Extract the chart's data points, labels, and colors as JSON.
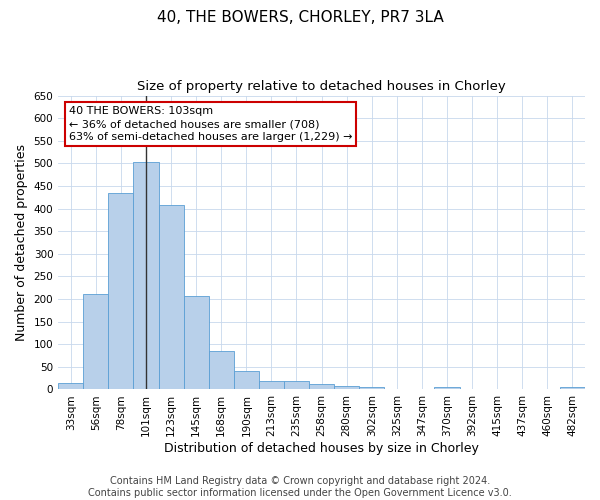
{
  "title": "40, THE BOWERS, CHORLEY, PR7 3LA",
  "subtitle": "Size of property relative to detached houses in Chorley",
  "xlabel": "Distribution of detached houses by size in Chorley",
  "ylabel": "Number of detached properties",
  "categories": [
    "33sqm",
    "56sqm",
    "78sqm",
    "101sqm",
    "123sqm",
    "145sqm",
    "168sqm",
    "190sqm",
    "213sqm",
    "235sqm",
    "258sqm",
    "280sqm",
    "302sqm",
    "325sqm",
    "347sqm",
    "370sqm",
    "392sqm",
    "415sqm",
    "437sqm",
    "460sqm",
    "482sqm"
  ],
  "values": [
    15,
    212,
    435,
    503,
    407,
    207,
    85,
    40,
    18,
    18,
    12,
    7,
    5,
    0,
    0,
    5,
    0,
    0,
    0,
    0,
    5
  ],
  "bar_color": "#b8d0ea",
  "bar_edge_color": "#5a9fd4",
  "highlight_bin_index": 3,
  "highlight_line_color": "#333333",
  "ylim": [
    0,
    650
  ],
  "yticks": [
    0,
    50,
    100,
    150,
    200,
    250,
    300,
    350,
    400,
    450,
    500,
    550,
    600,
    650
  ],
  "annotation_line1": "40 THE BOWERS: 103sqm",
  "annotation_line2": "← 36% of detached houses are smaller (708)",
  "annotation_line3": "63% of semi-detached houses are larger (1,229) →",
  "annotation_box_color": "#ffffff",
  "annotation_border_color": "#cc0000",
  "footnote1": "Contains HM Land Registry data © Crown copyright and database right 2024.",
  "footnote2": "Contains public sector information licensed under the Open Government Licence v3.0.",
  "background_color": "#ffffff",
  "grid_color": "#c8d8ec",
  "title_fontsize": 11,
  "subtitle_fontsize": 9.5,
  "axis_label_fontsize": 9,
  "tick_fontsize": 7.5,
  "footnote_fontsize": 7,
  "annotation_fontsize": 8
}
